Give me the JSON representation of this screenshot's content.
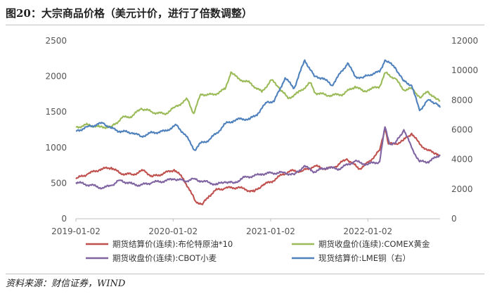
{
  "title": "图20：大宗商品价格（美元计价，进行了倍数调整）",
  "source": "资料来源：财信证券，WIND",
  "chart_data": {
    "type": "line",
    "x_ticks": [
      "2019-01-02",
      "2020-01-02",
      "2021-01-02",
      "2022-01-02"
    ],
    "x_range": [
      "2019-01-02",
      "2022-09-30"
    ],
    "y_left": {
      "range": [
        0,
        2500
      ],
      "ticks": [
        "0",
        "500",
        "1000",
        "1500",
        "2000",
        "2500"
      ]
    },
    "y_right": {
      "range": [
        0,
        12000
      ],
      "ticks": [
        "0",
        "2000",
        "4000",
        "6000",
        "8000",
        "10000",
        "12000"
      ]
    },
    "grid": false,
    "legend_position": "bottom",
    "series": [
      {
        "name": "期货结算价(连续):布伦特原油*10",
        "color": "#c0504d",
        "axis": "left",
        "points": [
          [
            "2019-01-02",
            560
          ],
          [
            "2019-02-15",
            630
          ],
          [
            "2019-04-01",
            690
          ],
          [
            "2019-05-15",
            720
          ],
          [
            "2019-06-15",
            640
          ],
          [
            "2019-08-01",
            620
          ],
          [
            "2019-09-16",
            680
          ],
          [
            "2019-10-15",
            590
          ],
          [
            "2019-12-01",
            640
          ],
          [
            "2020-01-06",
            690
          ],
          [
            "2020-02-10",
            560
          ],
          [
            "2020-03-10",
            360
          ],
          [
            "2020-03-25",
            250
          ],
          [
            "2020-04-21",
            200
          ],
          [
            "2020-05-15",
            320
          ],
          [
            "2020-06-15",
            410
          ],
          [
            "2020-07-15",
            430
          ],
          [
            "2020-09-01",
            440
          ],
          [
            "2020-10-01",
            410
          ],
          [
            "2020-11-01",
            380
          ],
          [
            "2020-12-01",
            470
          ],
          [
            "2021-01-04",
            520
          ],
          [
            "2021-02-15",
            620
          ],
          [
            "2021-03-15",
            670
          ],
          [
            "2021-05-01",
            670
          ],
          [
            "2021-06-15",
            740
          ],
          [
            "2021-08-01",
            700
          ],
          [
            "2021-09-01",
            730
          ],
          [
            "2021-10-15",
            840
          ],
          [
            "2021-12-01",
            700
          ],
          [
            "2022-01-04",
            790
          ],
          [
            "2022-02-15",
            960
          ],
          [
            "2022-03-08",
            1280
          ],
          [
            "2022-03-20",
            1050
          ],
          [
            "2022-04-15",
            1050
          ],
          [
            "2022-05-15",
            1100
          ],
          [
            "2022-06-15",
            1200
          ],
          [
            "2022-07-15",
            1050
          ],
          [
            "2022-08-15",
            960
          ],
          [
            "2022-09-15",
            920
          ],
          [
            "2022-09-30",
            880
          ]
        ]
      },
      {
        "name": "期货收盘价(连续):COMEX黄金",
        "color": "#9bbb59",
        "axis": "left",
        "points": [
          [
            "2019-01-02",
            1285
          ],
          [
            "2019-02-15",
            1320
          ],
          [
            "2019-04-01",
            1290
          ],
          [
            "2019-05-15",
            1290
          ],
          [
            "2019-06-25",
            1420
          ],
          [
            "2019-08-01",
            1440
          ],
          [
            "2019-09-04",
            1550
          ],
          [
            "2019-10-15",
            1500
          ],
          [
            "2019-12-01",
            1470
          ],
          [
            "2020-01-06",
            1560
          ],
          [
            "2020-02-24",
            1680
          ],
          [
            "2020-03-19",
            1480
          ],
          [
            "2020-04-15",
            1750
          ],
          [
            "2020-06-01",
            1740
          ],
          [
            "2020-07-15",
            1820
          ],
          [
            "2020-08-06",
            2060
          ],
          [
            "2020-09-01",
            1970
          ],
          [
            "2020-10-15",
            1910
          ],
          [
            "2020-11-30",
            1780
          ],
          [
            "2021-01-04",
            1950
          ],
          [
            "2021-02-01",
            1850
          ],
          [
            "2021-03-08",
            1690
          ],
          [
            "2021-04-15",
            1770
          ],
          [
            "2021-05-31",
            1910
          ],
          [
            "2021-06-18",
            1770
          ],
          [
            "2021-08-09",
            1730
          ],
          [
            "2021-09-30",
            1750
          ],
          [
            "2021-11-15",
            1860
          ],
          [
            "2021-12-15",
            1790
          ],
          [
            "2022-01-04",
            1810
          ],
          [
            "2022-02-15",
            1860
          ],
          [
            "2022-03-08",
            2050
          ],
          [
            "2022-04-15",
            1970
          ],
          [
            "2022-05-15",
            1810
          ],
          [
            "2022-06-15",
            1830
          ],
          [
            "2022-07-20",
            1700
          ],
          [
            "2022-08-15",
            1790
          ],
          [
            "2022-09-15",
            1680
          ],
          [
            "2022-09-30",
            1660
          ]
        ]
      },
      {
        "name": "期货收盘价(连续):CBOT小麦",
        "color": "#8064a2",
        "axis": "left",
        "points": [
          [
            "2019-01-02",
            510
          ],
          [
            "2019-03-01",
            470
          ],
          [
            "2019-04-15",
            430
          ],
          [
            "2019-05-15",
            470
          ],
          [
            "2019-06-15",
            540
          ],
          [
            "2019-08-01",
            490
          ],
          [
            "2019-09-01",
            470
          ],
          [
            "2019-10-15",
            510
          ],
          [
            "2019-12-01",
            530
          ],
          [
            "2020-01-06",
            560
          ],
          [
            "2020-02-15",
            530
          ],
          [
            "2020-03-20",
            560
          ],
          [
            "2020-04-15",
            530
          ],
          [
            "2020-05-15",
            510
          ],
          [
            "2020-06-15",
            480
          ],
          [
            "2020-07-15",
            520
          ],
          [
            "2020-08-15",
            500
          ],
          [
            "2020-10-01",
            590
          ],
          [
            "2020-11-01",
            600
          ],
          [
            "2020-12-01",
            630
          ],
          [
            "2021-01-04",
            640
          ],
          [
            "2021-02-15",
            650
          ],
          [
            "2021-04-01",
            620
          ],
          [
            "2021-05-07",
            740
          ],
          [
            "2021-06-15",
            660
          ],
          [
            "2021-08-01",
            720
          ],
          [
            "2021-09-15",
            700
          ],
          [
            "2021-11-15",
            810
          ],
          [
            "2021-12-15",
            770
          ],
          [
            "2022-01-04",
            770
          ],
          [
            "2022-02-15",
            800
          ],
          [
            "2022-03-07",
            1290
          ],
          [
            "2022-03-25",
            1050
          ],
          [
            "2022-04-15",
            1060
          ],
          [
            "2022-05-17",
            1250
          ],
          [
            "2022-06-15",
            1000
          ],
          [
            "2022-07-15",
            800
          ],
          [
            "2022-08-15",
            800
          ],
          [
            "2022-09-15",
            860
          ],
          [
            "2022-09-30",
            900
          ]
        ]
      },
      {
        "name": "现货结算价:LME铜（右）",
        "color": "#4f81bd",
        "axis": "right",
        "points": [
          [
            "2019-01-02",
            5900
          ],
          [
            "2019-02-15",
            6200
          ],
          [
            "2019-04-15",
            6450
          ],
          [
            "2019-05-15",
            6100
          ],
          [
            "2019-06-15",
            5900
          ],
          [
            "2019-08-01",
            5800
          ],
          [
            "2019-09-03",
            5550
          ],
          [
            "2019-10-15",
            5800
          ],
          [
            "2019-12-01",
            5900
          ],
          [
            "2020-01-14",
            6300
          ],
          [
            "2020-02-15",
            5700
          ],
          [
            "2020-03-23",
            4630
          ],
          [
            "2020-04-15",
            5100
          ],
          [
            "2020-05-15",
            5300
          ],
          [
            "2020-06-15",
            5800
          ],
          [
            "2020-07-15",
            6400
          ],
          [
            "2020-08-15",
            6600
          ],
          [
            "2020-09-15",
            6750
          ],
          [
            "2020-10-15",
            6700
          ],
          [
            "2020-11-15",
            7100
          ],
          [
            "2020-12-21",
            7900
          ],
          [
            "2021-01-15",
            7900
          ],
          [
            "2021-02-25",
            9500
          ],
          [
            "2021-03-31",
            8800
          ],
          [
            "2021-05-10",
            10700
          ],
          [
            "2021-06-15",
            9600
          ],
          [
            "2021-07-15",
            9500
          ],
          [
            "2021-08-20",
            9000
          ],
          [
            "2021-10-18",
            10500
          ],
          [
            "2021-11-15",
            9600
          ],
          [
            "2021-12-15",
            9500
          ],
          [
            "2022-01-04",
            9700
          ],
          [
            "2022-02-15",
            9900
          ],
          [
            "2022-03-07",
            10700
          ],
          [
            "2022-04-15",
            10200
          ],
          [
            "2022-05-15",
            9300
          ],
          [
            "2022-06-15",
            9000
          ],
          [
            "2022-07-15",
            7300
          ],
          [
            "2022-08-15",
            8000
          ],
          [
            "2022-09-15",
            7800
          ],
          [
            "2022-09-30",
            7500
          ]
        ]
      }
    ]
  }
}
